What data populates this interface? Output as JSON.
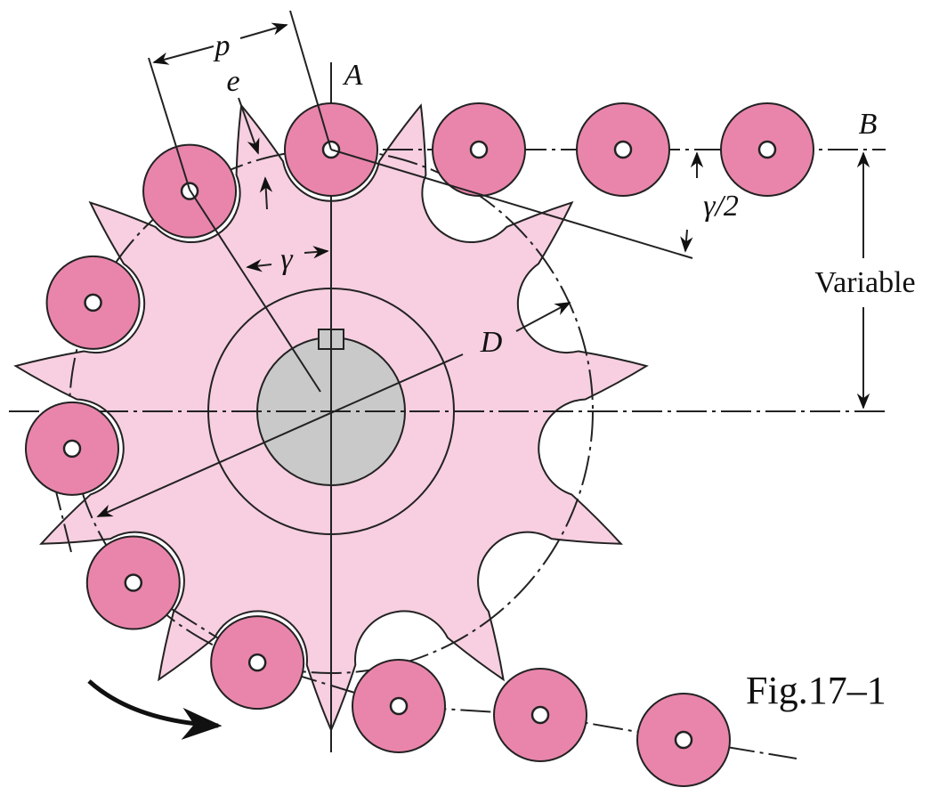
{
  "labels": {
    "p": "p",
    "e": "e",
    "a": "A",
    "b": "B",
    "gamma_half": "γ/2",
    "gamma": "γ",
    "variable": "Variable",
    "d": "D"
  },
  "caption": "Fig.17–1"
}
